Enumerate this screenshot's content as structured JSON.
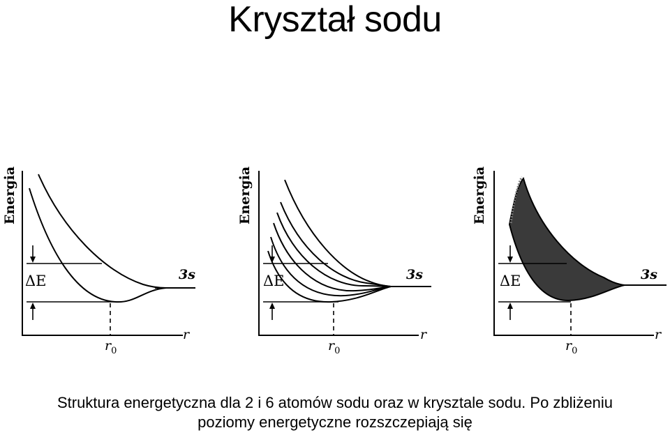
{
  "title": "Kryształ sodu",
  "panels": [
    {
      "ylabel": "Energia",
      "level_label": "3s",
      "axis_label": "r",
      "gap_label": "ΔE",
      "r0_label": "r0",
      "curve_count": 2,
      "filled": false
    },
    {
      "ylabel": "Energia",
      "level_label": "3s",
      "axis_label": "r",
      "gap_label": "ΔE",
      "r0_label": "r0",
      "curve_count": 6,
      "filled": false
    },
    {
      "ylabel": "Energia",
      "level_label": "3s",
      "axis_label": "r",
      "gap_label": "ΔE",
      "r0_label": "r0",
      "curve_count": 0,
      "filled": true
    }
  ],
  "caption": {
    "line1": "Struktura energetyczna dla 2 i 6 atomów sodu oraz w krysztale sodu. Po zbliżeniu",
    "line2": "poziomy energetyczne rozszczepiają się"
  }
}
